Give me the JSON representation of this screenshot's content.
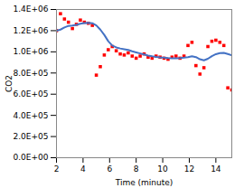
{
  "chart_data": {
    "type": "scatter",
    "xlabel": "Time (minute)",
    "ylabel": "CO2",
    "x": [
      2.0,
      2.3,
      2.6,
      2.9,
      3.2,
      3.5,
      3.8,
      4.1,
      4.4,
      4.7,
      5.0,
      5.3,
      5.6,
      5.9,
      6.2,
      6.5,
      6.8,
      7.1,
      7.4,
      7.7,
      8.0,
      8.3,
      8.6,
      8.9,
      9.2,
      9.5,
      9.8,
      10.1,
      10.4,
      10.7,
      11.0,
      11.3,
      11.6,
      11.9,
      12.2,
      12.5,
      12.8,
      13.1,
      13.4,
      13.7,
      14.0,
      14.3,
      14.6,
      14.9,
      15.2
    ],
    "series": [
      {
        "type": "scatter",
        "color": "#FF0000",
        "marker": "square",
        "values": [
          1200000,
          1360000,
          1310000,
          1280000,
          1220000,
          1260000,
          1300000,
          1280000,
          1270000,
          1250000,
          780000,
          860000,
          970000,
          1020000,
          1050000,
          1010000,
          980000,
          970000,
          990000,
          960000,
          940000,
          960000,
          980000,
          950000,
          940000,
          960000,
          950000,
          940000,
          930000,
          950000,
          960000,
          940000,
          960000,
          1060000,
          1090000,
          870000,
          790000,
          850000,
          1050000,
          1100000,
          1110000,
          1090000,
          1060000,
          660000,
          640000
        ]
      },
      {
        "type": "line",
        "color": "#4472C4",
        "line_style": "solid",
        "values": [
          1200000,
          1210000,
          1230000,
          1245000,
          1248000,
          1255000,
          1265000,
          1272000,
          1275000,
          1270000,
          1250000,
          1210000,
          1160000,
          1100000,
          1060000,
          1042000,
          1032000,
          1025000,
          1018000,
          1005000,
          995000,
          985000,
          975000,
          965000,
          958000,
          952000,
          948000,
          945000,
          942000,
          940000,
          940000,
          942000,
          945000,
          950000,
          958000,
          950000,
          930000,
          920000,
          935000,
          960000,
          978000,
          988000,
          990000,
          980000,
          968000
        ]
      }
    ],
    "xlim": [
      2,
      15.2
    ],
    "xticks": [
      2,
      4,
      6,
      8,
      10,
      12,
      14
    ],
    "ylim": [
      0,
      1400000
    ],
    "yticks": [
      {
        "value": 0,
        "label": "0.0E+00"
      },
      {
        "value": 200000,
        "label": "2.0E+05"
      },
      {
        "value": 400000,
        "label": "4.0E+05"
      },
      {
        "value": 600000,
        "label": "6.0E+05"
      },
      {
        "value": 800000,
        "label": "8.0E+05"
      },
      {
        "value": 1000000,
        "label": "1.0E+06"
      },
      {
        "value": 1200000,
        "label": "1.2E+06"
      },
      {
        "value": 1400000,
        "label": "1.4E+06"
      }
    ],
    "grid": false
  }
}
